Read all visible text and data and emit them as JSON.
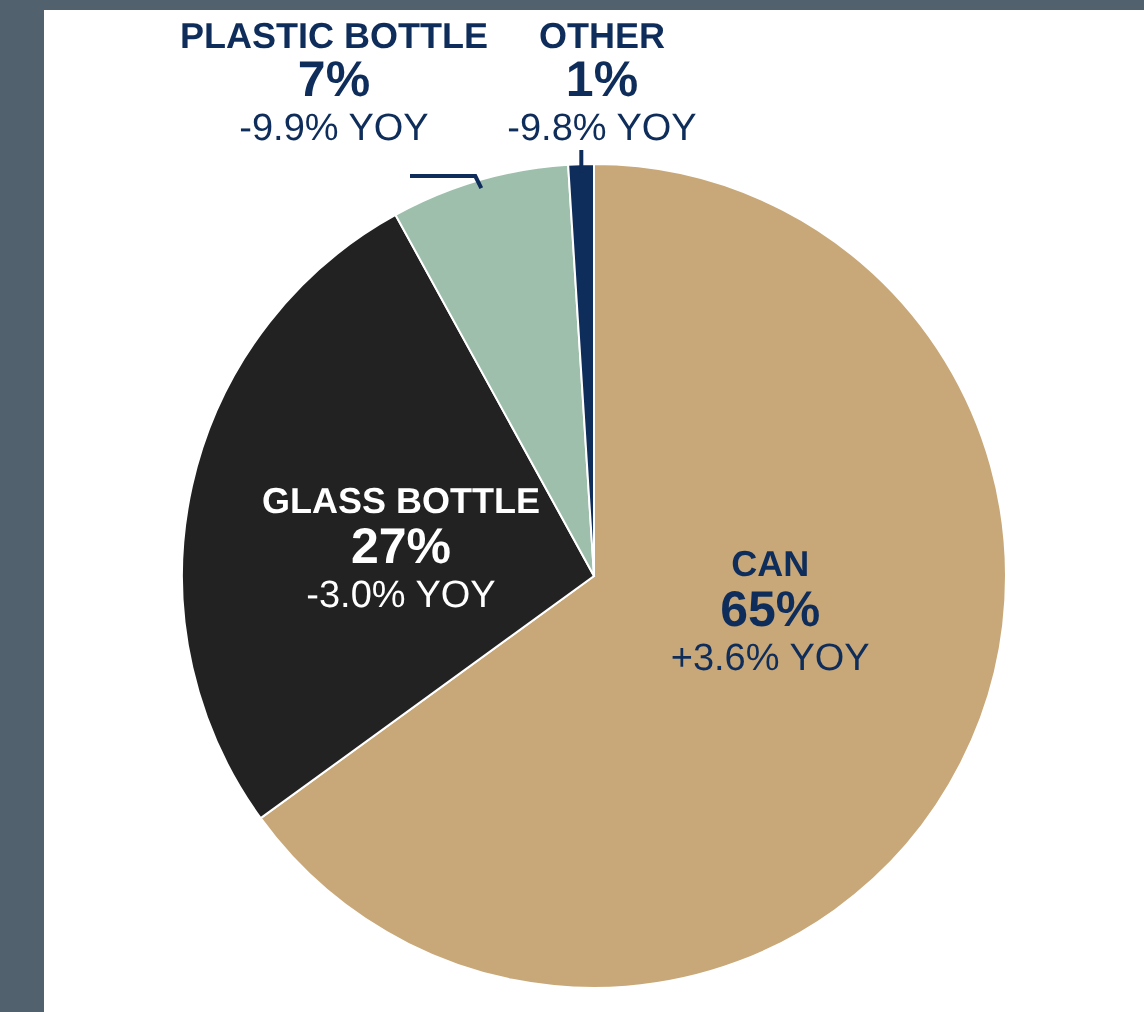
{
  "chart_data": {
    "type": "pie",
    "categories": [
      "CAN",
      "GLASS BOTTLE",
      "PLASTIC BOTTLE",
      "OTHER"
    ],
    "values": [
      65,
      27,
      7,
      1
    ],
    "colors": [
      "#c8a878",
      "#222222",
      "#9dbfab",
      "#0f2d5a"
    ],
    "value_labels": [
      "65%",
      "27%",
      "7%",
      "1%"
    ],
    "annotations": [
      "+3.6% YOY",
      "-3.0% YOY",
      "-9.9% YOY",
      "-9.8% YOY"
    ]
  }
}
